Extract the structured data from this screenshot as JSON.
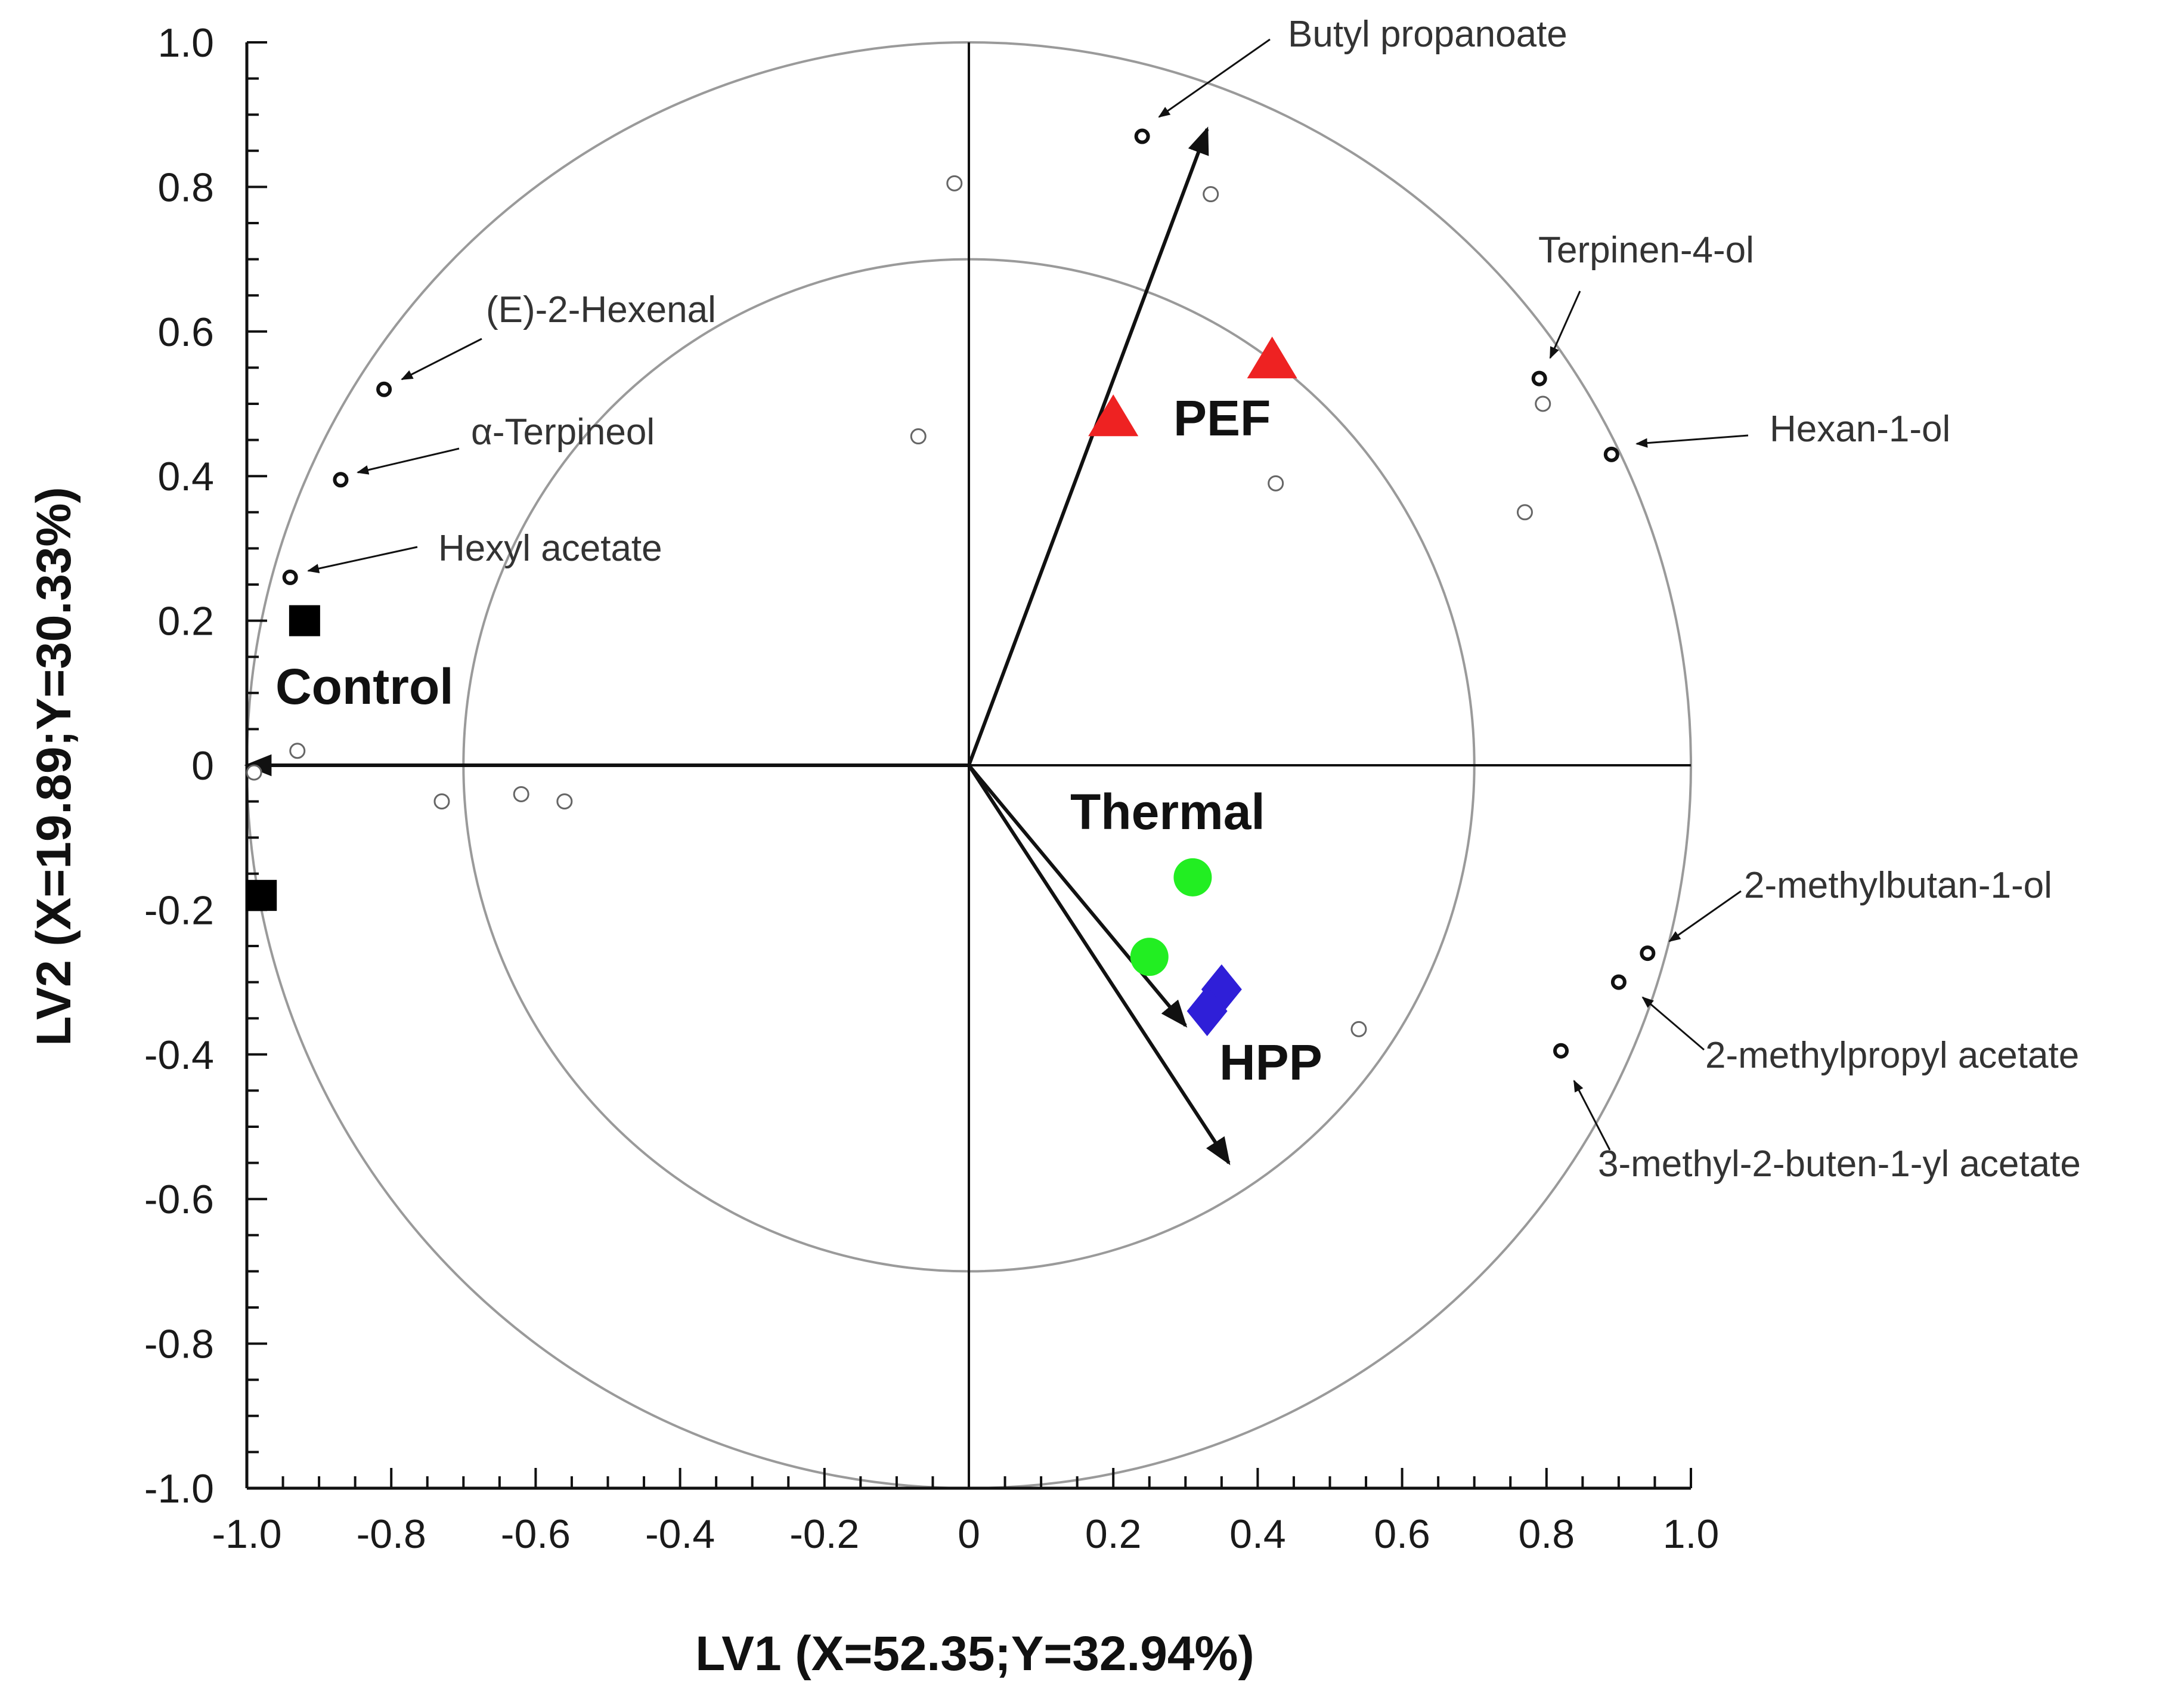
{
  "chart_data": {
    "type": "scatter",
    "title": "",
    "xlabel": "LV1 (X=52.35;Y=32.94%)",
    "ylabel": "LV2 (X=19.89;Y=30.33%)",
    "xlim": [
      -1.0,
      1.0
    ],
    "ylim": [
      -1.0,
      1.0
    ],
    "x_ticks": [
      "-1.0",
      "-0.8",
      "-0.6",
      "-0.4",
      "-0.2",
      "0",
      "0.2",
      "0.4",
      "0.6",
      "0.8",
      "1.0"
    ],
    "y_ticks": [
      "1.0",
      "0.8",
      "0.6",
      "0.4",
      "0.2",
      "0",
      "-0.2",
      "-0.4",
      "-0.6",
      "-0.8",
      "-1.0"
    ],
    "circles": [
      {
        "radius": 1.0
      },
      {
        "radius": 0.7
      }
    ],
    "labeled_variables": [
      {
        "name": "Butyl propanoate",
        "x": 0.24,
        "y": 0.87
      },
      {
        "name": "Terpinen-4-ol",
        "x": 0.79,
        "y": 0.535
      },
      {
        "name": "Hexan-1-ol",
        "x": 0.89,
        "y": 0.43
      },
      {
        "name": "(E)-2-Hexenal",
        "x": -0.81,
        "y": 0.52
      },
      {
        "name": "α-Terpineol",
        "x": -0.87,
        "y": 0.395
      },
      {
        "name": "Hexyl acetate",
        "x": -0.94,
        "y": 0.26
      },
      {
        "name": "2-methylbutan-1-ol",
        "x": 0.94,
        "y": -0.26
      },
      {
        "name": "2-methylpropyl acetate",
        "x": 0.9,
        "y": -0.3
      },
      {
        "name": "3-methyl-2-buten-1-yl acetate",
        "x": 0.82,
        "y": -0.395
      }
    ],
    "other_variables": [
      {
        "x": -0.02,
        "y": 0.805
      },
      {
        "x": 0.335,
        "y": 0.79
      },
      {
        "x": -0.07,
        "y": 0.455
      },
      {
        "x": 0.425,
        "y": 0.39
      },
      {
        "x": 0.795,
        "y": 0.5
      },
      {
        "x": 0.77,
        "y": 0.35
      },
      {
        "x": -0.93,
        "y": 0.02
      },
      {
        "x": -0.99,
        "y": -0.01
      },
      {
        "x": -0.73,
        "y": -0.05
      },
      {
        "x": -0.62,
        "y": -0.04
      },
      {
        "x": -0.56,
        "y": -0.05
      },
      {
        "x": 0.54,
        "y": -0.365
      }
    ],
    "treatment_vectors": [
      {
        "to": "PEF",
        "x": 0.33,
        "y": 0.88
      },
      {
        "to": "Control",
        "x": -1.0,
        "y": 0.0
      },
      {
        "to": "Thermal",
        "x": 0.3,
        "y": -0.36
      },
      {
        "to": "HPP",
        "x": 0.36,
        "y": -0.55
      }
    ],
    "groups": [
      {
        "name": "Control",
        "marker": "square",
        "color": "#000000",
        "points": [
          {
            "x": -0.92,
            "y": 0.2
          },
          {
            "x": -0.98,
            "y": -0.18
          }
        ]
      },
      {
        "name": "PEF",
        "marker": "triangle",
        "color": "#ee2222",
        "points": [
          {
            "x": 0.2,
            "y": 0.48
          },
          {
            "x": 0.42,
            "y": 0.56
          }
        ]
      },
      {
        "name": "Thermal",
        "marker": "circle",
        "color": "#22ee22",
        "points": [
          {
            "x": 0.31,
            "y": -0.155
          },
          {
            "x": 0.25,
            "y": -0.265
          }
        ]
      },
      {
        "name": "HPP",
        "marker": "diamond",
        "color": "#2f1fd8",
        "points": [
          {
            "x": 0.35,
            "y": -0.31
          },
          {
            "x": 0.33,
            "y": -0.34
          }
        ]
      }
    ]
  }
}
